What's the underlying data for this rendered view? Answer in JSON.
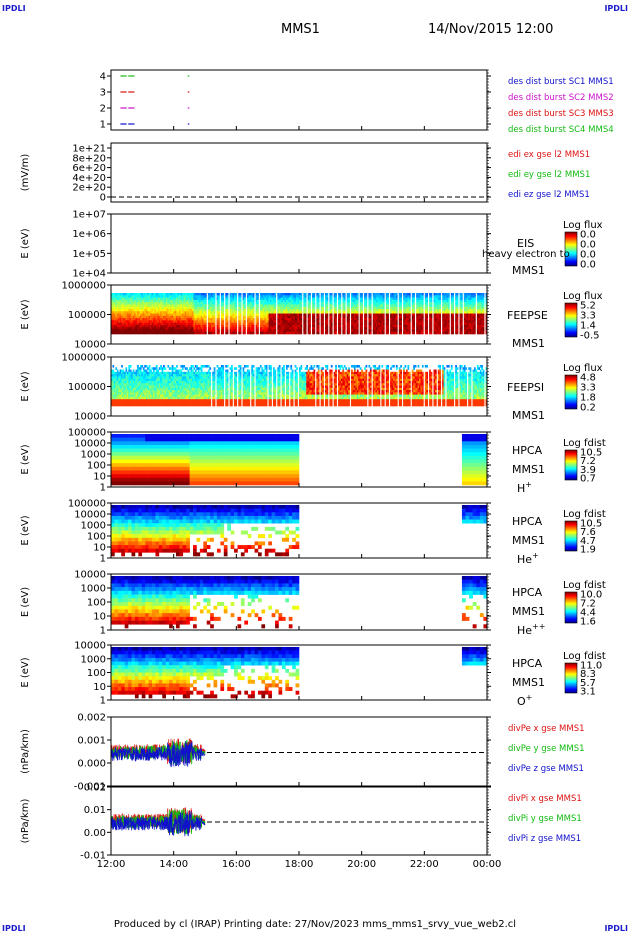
{
  "header": {
    "corner_label": "IPDLI",
    "spacecraft": "MMS1",
    "date_time": "14/Nov/2015 12:00"
  },
  "footer": {
    "text": "Produced by cl (IRAP)   Printing date: 27/Nov/2023   mms_mms1_srvy_vue_web2.cl"
  },
  "colors": {
    "red": "#dd1111",
    "green": "#11bb11",
    "blue": "#1111cc",
    "magenta": "#cc11cc"
  },
  "chart_data": {
    "type": "multi-panel time series",
    "x_ticks": [
      "12:00",
      "14:00",
      "16:00",
      "18:00",
      "20:00",
      "22:00",
      "00:00"
    ],
    "x_range_hours": [
      12,
      24
    ],
    "panels": [
      {
        "type": "line",
        "kind": "burst",
        "ylabel": "",
        "y_ticks": [
          "4",
          "3",
          "2",
          "1"
        ],
        "legend": [
          {
            "label": "des dist burst SC1 MMS1",
            "color": "#1111cc"
          },
          {
            "label": "des dist burst SC2 MMS2",
            "color": "#cc11cc"
          },
          {
            "label": "des dist burst SC3 MMS3",
            "color": "#dd1111"
          },
          {
            "label": "des dist burst SC4 MMS4",
            "color": "#11bb11"
          }
        ]
      },
      {
        "type": "line",
        "kind": "edi",
        "ylabel": "(mV/m)",
        "y_ticks": [
          "1e+21",
          "8e+20",
          "6e+20",
          "4e+20",
          "2e+20",
          "0"
        ],
        "legend": [
          {
            "label": "edi ex gse l2 MMS1",
            "color": "#dd1111"
          },
          {
            "label": "edi ey gse l2 MMS1",
            "color": "#11bb11"
          },
          {
            "label": "edi ez gse l2 MMS1",
            "color": "#1111cc"
          }
        ]
      },
      {
        "type": "heatmap",
        "kind": "eis",
        "ylabel": "E (eV)",
        "y_ticks": [
          "1e+07",
          "1e+06",
          "1e+05",
          "1e+04"
        ],
        "instrument": [
          "EIS",
          "MMS1"
        ],
        "overlay_text": "heavy electron to",
        "colorbar_title": "Log flux",
        "colorbar_ticks": [
          "0.0",
          "0.0",
          "0.0",
          "0.0"
        ]
      },
      {
        "type": "heatmap",
        "kind": "feepse",
        "ylabel": "E (eV)",
        "y_ticks": [
          "1000000",
          "100000",
          "10000"
        ],
        "instrument": [
          "FEEPSE",
          "MMS1"
        ],
        "colorbar_title": "Log flux",
        "colorbar_ticks": [
          "5.2",
          "3.3",
          "1.4",
          "-0.5"
        ]
      },
      {
        "type": "heatmap",
        "kind": "feepsi",
        "ylabel": "E (eV)",
        "y_ticks": [
          "1000000",
          "100000",
          "10000"
        ],
        "instrument": [
          "FEEPSI",
          "MMS1"
        ],
        "colorbar_title": "Log flux",
        "colorbar_ticks": [
          "4.8",
          "3.3",
          "1.8",
          "0.2"
        ]
      },
      {
        "type": "heatmap",
        "kind": "hpca",
        "ylabel": "E (eV)",
        "y_ticks": [
          "100000",
          "10000",
          "1000",
          "100",
          "10",
          "1"
        ],
        "instrument": [
          "HPCA",
          "MMS1"
        ],
        "species": "H",
        "species_charge": "+",
        "colorbar_title": "Log fdist",
        "colorbar_ticks": [
          "10.5",
          "7.2",
          "3.9",
          "0.7"
        ]
      },
      {
        "type": "heatmap",
        "kind": "hpca",
        "ylabel": "E (eV)",
        "y_ticks": [
          "100000",
          "10000",
          "1000",
          "100",
          "10",
          "1"
        ],
        "instrument": [
          "HPCA",
          "MMS1"
        ],
        "species": "He",
        "species_charge": "+",
        "colorbar_title": "Log fdist",
        "colorbar_ticks": [
          "10.5",
          "7.6",
          "4.7",
          "1.9"
        ]
      },
      {
        "type": "heatmap",
        "kind": "hpca",
        "ylabel": "E (eV)",
        "y_ticks": [
          "10000",
          "1000",
          "100",
          "10",
          "1"
        ],
        "instrument": [
          "HPCA",
          "MMS1"
        ],
        "species": "He",
        "species_charge": "++",
        "colorbar_title": "Log fdist",
        "colorbar_ticks": [
          "10.0",
          "7.2",
          "4.4",
          "1.6"
        ]
      },
      {
        "type": "heatmap",
        "kind": "hpca",
        "ylabel": "E (eV)",
        "y_ticks": [
          "10000",
          "1000",
          "100",
          "10",
          "1"
        ],
        "instrument": [
          "HPCA",
          "MMS1"
        ],
        "species": "O",
        "species_charge": "+",
        "colorbar_title": "Log fdist",
        "colorbar_ticks": [
          "11.0",
          "8.3",
          "5.7",
          "3.1"
        ]
      },
      {
        "type": "line",
        "kind": "divp",
        "ylabel": "(nPa/km)",
        "y_ticks": [
          "0.002",
          "0.001",
          "0.000",
          "-0.001"
        ],
        "legend": [
          {
            "label": "divPe x gse MMS1",
            "color": "#dd1111"
          },
          {
            "label": "divPe y gse MMS1",
            "color": "#11bb11"
          },
          {
            "label": "divPe z gse MMS1",
            "color": "#1111cc"
          }
        ]
      },
      {
        "type": "line",
        "kind": "divp",
        "ylabel": "(nPa/km)",
        "y_ticks": [
          "0.02",
          "0.01",
          "0.00",
          "-0.01"
        ],
        "legend": [
          {
            "label": "divPi x gse MMS1",
            "color": "#dd1111"
          },
          {
            "label": "divPi y gse MMS1",
            "color": "#11bb11"
          },
          {
            "label": "divPi z gse MMS1",
            "color": "#1111cc"
          }
        ]
      }
    ]
  }
}
